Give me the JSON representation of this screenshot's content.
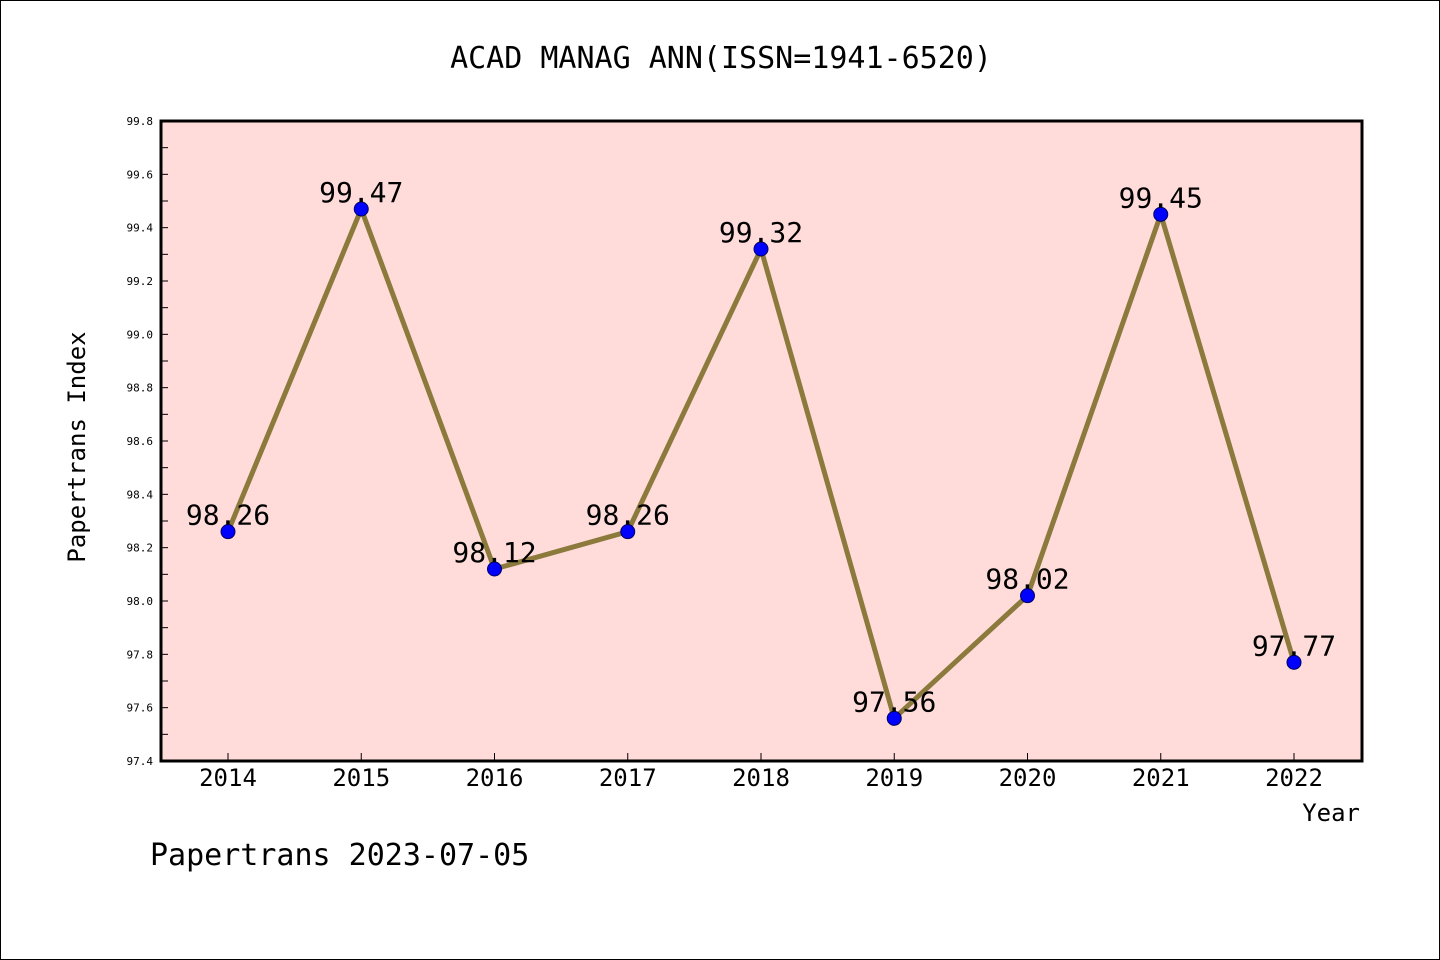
{
  "chart_data": {
    "type": "line",
    "title": "ACAD MANAG ANN(ISSN=1941-6520)",
    "xlabel": "Year",
    "ylabel": "Papertrans Index",
    "categories": [
      "2014",
      "2015",
      "2016",
      "2017",
      "2018",
      "2019",
      "2020",
      "2021",
      "2022"
    ],
    "values": [
      98.26,
      99.47,
      98.12,
      98.26,
      99.32,
      97.56,
      98.02,
      99.45,
      97.77
    ],
    "data_labels": [
      "98.26",
      "99.47",
      "98.12",
      "98.26",
      "99.32",
      "97.56",
      "98.02",
      "99.45",
      "97.77"
    ],
    "ylim": [
      97.4,
      99.8
    ],
    "yticks": [
      "97.4",
      "97.6",
      "97.8",
      "98.0",
      "98.2",
      "98.4",
      "98.6",
      "98.8",
      "99.0",
      "99.2",
      "99.4",
      "99.6",
      "99.8"
    ],
    "grid": false,
    "legend": "none",
    "colors": {
      "background": "#ffdcda",
      "line": "#8b7a3c",
      "marker": "#0000ff",
      "axis": "#000000"
    }
  },
  "footer": "Papertrans 2023-07-05"
}
